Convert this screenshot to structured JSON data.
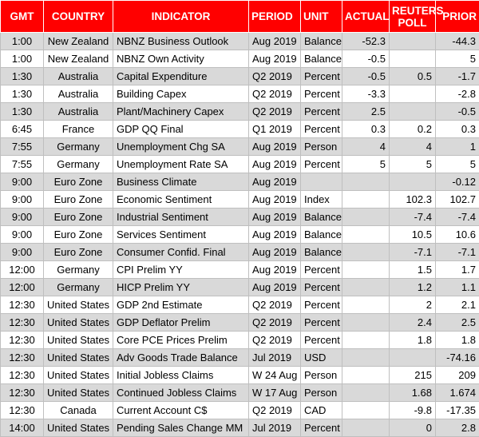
{
  "headers": [
    "GMT",
    "COUNTRY",
    "INDICATOR",
    "PERIOD",
    "UNIT",
    "ACTUAL",
    "REUTERS POLL",
    "PRIOR"
  ],
  "rows": [
    [
      "1:00",
      "New Zealand",
      "NBNZ Business Outlook",
      "Aug 2019",
      "Balance",
      "-52.3",
      "",
      "-44.3"
    ],
    [
      "1:00",
      "New Zealand",
      "NBNZ Own Activity",
      "Aug 2019",
      "Balance",
      "-0.5",
      "",
      "5"
    ],
    [
      "1:30",
      "Australia",
      "Capital Expenditure",
      "Q2 2019",
      "Percent",
      "-0.5",
      "0.5",
      "-1.7"
    ],
    [
      "1:30",
      "Australia",
      "Building Capex",
      "Q2 2019",
      "Percent",
      "-3.3",
      "",
      "-2.8"
    ],
    [
      "1:30",
      "Australia",
      "Plant/Machinery Capex",
      "Q2 2019",
      "Percent",
      "2.5",
      "",
      "-0.5"
    ],
    [
      "6:45",
      "France",
      "GDP QQ Final",
      "Q1 2019",
      "Percent",
      "0.3",
      "0.2",
      "0.3"
    ],
    [
      "7:55",
      "Germany",
      "Unemployment Chg SA",
      "Aug 2019",
      "Person",
      "4",
      "4",
      "1"
    ],
    [
      "7:55",
      "Germany",
      "Unemployment Rate SA",
      "Aug 2019",
      "Percent",
      "5",
      "5",
      "5"
    ],
    [
      "9:00",
      "Euro Zone",
      "Business Climate",
      "Aug 2019",
      "",
      "",
      "",
      "-0.12"
    ],
    [
      "9:00",
      "Euro Zone",
      "Economic Sentiment",
      "Aug 2019",
      "Index",
      "",
      "102.3",
      "102.7"
    ],
    [
      "9:00",
      "Euro Zone",
      "Industrial Sentiment",
      "Aug 2019",
      "Balance",
      "",
      "-7.4",
      "-7.4"
    ],
    [
      "9:00",
      "Euro Zone",
      "Services Sentiment",
      "Aug 2019",
      "Balance",
      "",
      "10.5",
      "10.6"
    ],
    [
      "9:00",
      "Euro Zone",
      "Consumer Confid. Final",
      "Aug 2019",
      "Balance",
      "",
      "-7.1",
      "-7.1"
    ],
    [
      "12:00",
      "Germany",
      "CPI Prelim YY",
      "Aug 2019",
      "Percent",
      "",
      "1.5",
      "1.7"
    ],
    [
      "12:00",
      "Germany",
      "HICP Prelim YY",
      "Aug 2019",
      "Percent",
      "",
      "1.2",
      "1.1"
    ],
    [
      "12:30",
      "United States",
      "GDP 2nd Estimate",
      "Q2 2019",
      "Percent",
      "",
      "2",
      "2.1"
    ],
    [
      "12:30",
      "United States",
      "GDP Deflator Prelim",
      "Q2 2019",
      "Percent",
      "",
      "2.4",
      "2.5"
    ],
    [
      "12:30",
      "United States",
      "Core PCE Prices Prelim",
      "Q2 2019",
      "Percent",
      "",
      "1.8",
      "1.8"
    ],
    [
      "12:30",
      "United States",
      "Adv Goods Trade Balance",
      "Jul 2019",
      "USD",
      "",
      "",
      "-74.16"
    ],
    [
      "12:30",
      "United States",
      "Initial Jobless Claims",
      "W 24 Aug",
      "Person",
      "",
      "215",
      "209"
    ],
    [
      "12:30",
      "United States",
      "Continued Jobless Claims",
      "W 17 Aug",
      "Person",
      "",
      "1.68",
      "1.674"
    ],
    [
      "12:30",
      "Canada",
      "Current Account C$",
      "Q2 2019",
      "CAD",
      "",
      "-9.8",
      "-17.35"
    ],
    [
      "14:00",
      "United States",
      "Pending Sales Change MM",
      "Jul 2019",
      "Percent",
      "",
      "0",
      "2.8"
    ]
  ],
  "colors": {
    "header_bg": "#ff0000",
    "header_text": "#ffffff",
    "shade": "#d9d9d9",
    "grid": "#bfbfbf"
  }
}
